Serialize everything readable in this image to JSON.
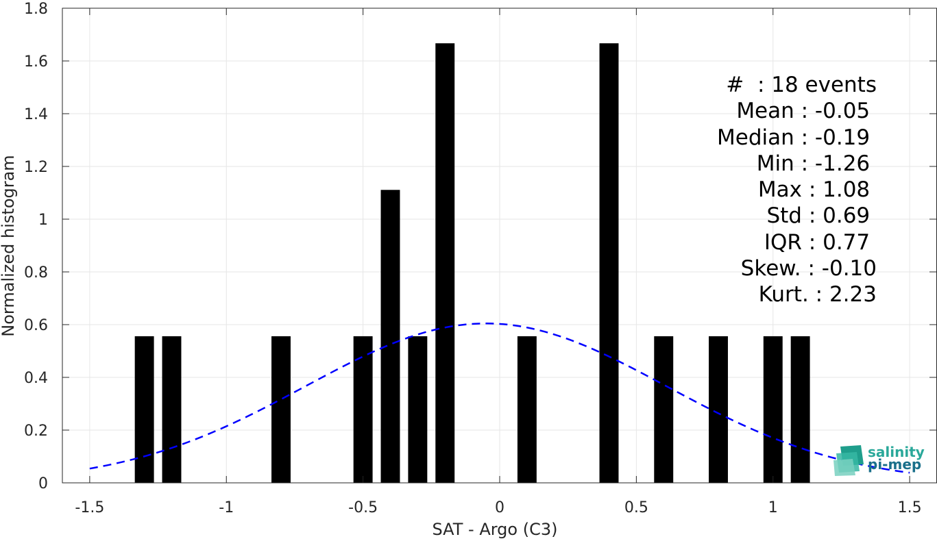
{
  "chart_data": {
    "type": "bar",
    "xlabel": "SAT - Argo (C3)",
    "ylabel": "Normalized histogram",
    "xlim": [
      -1.6,
      1.6
    ],
    "ylim": [
      0,
      1.8
    ],
    "grid": true,
    "x_ticks": [
      -1.5,
      -1,
      -0.5,
      0,
      0.5,
      1,
      1.5
    ],
    "x_tick_labels": [
      "-1.5",
      "-1",
      "-0.5",
      "0",
      "0.5",
      "1",
      "1.5"
    ],
    "y_ticks": [
      0,
      0.2,
      0.4,
      0.6,
      0.8,
      1,
      1.2,
      1.4,
      1.6,
      1.8
    ],
    "y_tick_labels": [
      "0",
      "0.2",
      "0.4",
      "0.6",
      "0.8",
      "1",
      "1.2",
      "1.4",
      "1.6",
      "1.8"
    ],
    "bar_width": 0.07,
    "bar_color": "#000000",
    "bins": [
      {
        "x": -1.3,
        "value": 0.556
      },
      {
        "x": -1.2,
        "value": 0.556
      },
      {
        "x": -0.8,
        "value": 0.556
      },
      {
        "x": -0.5,
        "value": 0.556
      },
      {
        "x": -0.4,
        "value": 1.111
      },
      {
        "x": -0.3,
        "value": 0.556
      },
      {
        "x": -0.2,
        "value": 1.667
      },
      {
        "x": 0.1,
        "value": 0.556
      },
      {
        "x": 0.4,
        "value": 1.667
      },
      {
        "x": 0.6,
        "value": 0.556
      },
      {
        "x": 0.8,
        "value": 0.556
      },
      {
        "x": 1.0,
        "value": 0.556
      },
      {
        "x": 1.1,
        "value": 0.556
      }
    ],
    "fit_curve": {
      "style": "dashed",
      "color": "#0000ff",
      "x_range": [
        -1.5,
        1.5
      ],
      "mean": -0.05,
      "std": 0.66
    }
  },
  "stats": [
    "#  : 18 events",
    "Mean : -0.05 ",
    "Median : -0.19 ",
    "Min : -1.26 ",
    "Max : 1.08 ",
    "Std : 0.69 ",
    "IQR : 0.77 ",
    "Skew. : -0.10",
    "Kurt. : 2.23"
  ],
  "logo": {
    "line1": "salinity",
    "line2": "pi-mep",
    "color1": "#2aa89a",
    "color2": "#1a6f8a"
  }
}
